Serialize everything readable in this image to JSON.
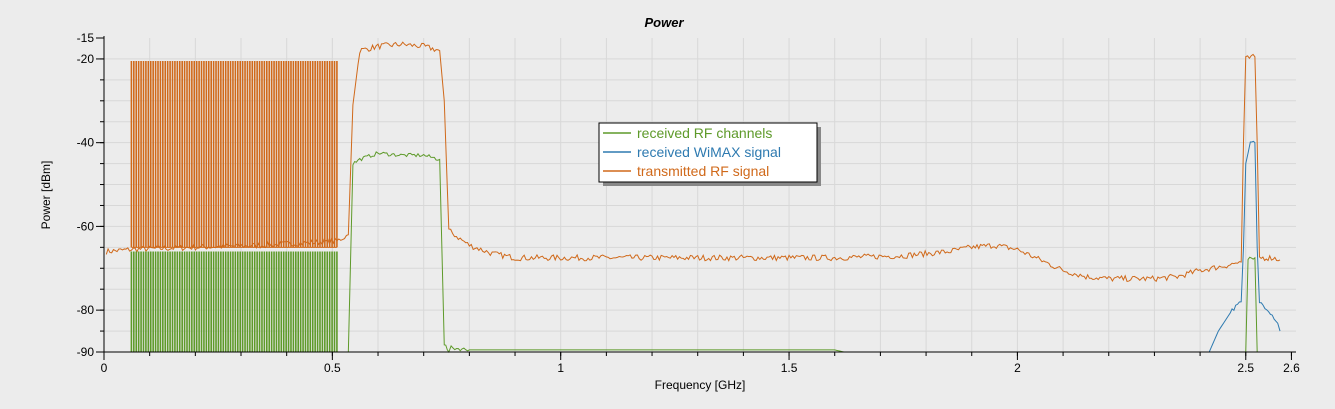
{
  "chart_data": {
    "type": "line",
    "title": "Power",
    "xlabel": "Frequency [GHz]",
    "ylabel": "Power [dBm]",
    "xlim": [
      0,
      2.6
    ],
    "ylim": [
      -90,
      -15
    ],
    "x_ticks": [
      0,
      0.5,
      1,
      1.5,
      2,
      2.5,
      2.6
    ],
    "x_tick_labels": [
      "0",
      "0.5",
      "1",
      "1.5",
      "2",
      "2.5",
      "2.6"
    ],
    "y_ticks": [
      -15,
      -20,
      -40,
      -60,
      -80,
      -90
    ],
    "y_tick_labels": [
      "-15",
      "-20",
      "-40",
      "-60",
      "-80",
      "-90"
    ],
    "grid": true,
    "legend_position": "center",
    "series": [
      {
        "name": "transmitted RF signal",
        "color": "#d0691a",
        "comb": {
          "x_start": 0.06,
          "x_end": 0.51,
          "count": 86,
          "peak": -20.5,
          "floor": -65
        },
        "points": [
          [
            0.005,
            -66
          ],
          [
            0.06,
            -65.5
          ],
          [
            0.2,
            -65
          ],
          [
            0.35,
            -64.5
          ],
          [
            0.51,
            -63.5
          ],
          [
            0.535,
            -62
          ],
          [
            0.545,
            -31
          ],
          [
            0.56,
            -18
          ],
          [
            0.6,
            -17
          ],
          [
            0.65,
            -16.5
          ],
          [
            0.7,
            -17
          ],
          [
            0.735,
            -18
          ],
          [
            0.745,
            -30
          ],
          [
            0.755,
            -61
          ],
          [
            0.78,
            -63
          ],
          [
            0.8,
            -64.5
          ],
          [
            0.85,
            -66.5
          ],
          [
            0.9,
            -67.5
          ],
          [
            1.0,
            -67.5
          ],
          [
            1.2,
            -67.5
          ],
          [
            1.4,
            -67.5
          ],
          [
            1.6,
            -67.5
          ],
          [
            1.75,
            -67
          ],
          [
            1.85,
            -66
          ],
          [
            1.9,
            -65
          ],
          [
            1.95,
            -64.5
          ],
          [
            2.0,
            -65.5
          ],
          [
            2.05,
            -68
          ],
          [
            2.1,
            -70.5
          ],
          [
            2.15,
            -72
          ],
          [
            2.2,
            -72.5
          ],
          [
            2.3,
            -72.5
          ],
          [
            2.35,
            -72
          ],
          [
            2.4,
            -70.5
          ],
          [
            2.45,
            -69.5
          ],
          [
            2.49,
            -68.5
          ],
          [
            2.495,
            -40
          ],
          [
            2.5,
            -20
          ],
          [
            2.52,
            -19.5
          ],
          [
            2.525,
            -40
          ],
          [
            2.53,
            -67.5
          ],
          [
            2.56,
            -67.5
          ],
          [
            2.575,
            -68
          ]
        ]
      },
      {
        "name": "received RF channels",
        "color": "#5e9a2a",
        "comb": {
          "x_start": 0.06,
          "x_end": 0.51,
          "count": 86,
          "peak": -66,
          "floor": -90
        },
        "points": [
          [
            0.535,
            -90
          ],
          [
            0.545,
            -45
          ],
          [
            0.56,
            -44
          ],
          [
            0.6,
            -42.5
          ],
          [
            0.65,
            -43
          ],
          [
            0.7,
            -43
          ],
          [
            0.735,
            -44
          ],
          [
            0.745,
            -88
          ],
          [
            0.755,
            -90
          ],
          [
            0.76,
            -89
          ],
          [
            0.8,
            -89.5
          ],
          [
            0.9,
            -89.5
          ],
          [
            1.0,
            -89.5
          ],
          [
            1.2,
            -89.5
          ],
          [
            1.4,
            -89.5
          ],
          [
            1.6,
            -89.5
          ],
          [
            1.62,
            -90
          ],
          [
            2.5,
            -90
          ],
          [
            2.505,
            -67.5
          ],
          [
            2.52,
            -67.5
          ],
          [
            2.525,
            -90
          ]
        ]
      },
      {
        "name": "received WiMAX signal",
        "color": "#2e7ab0",
        "points": [
          [
            2.42,
            -90
          ],
          [
            2.44,
            -85
          ],
          [
            2.47,
            -80
          ],
          [
            2.49,
            -78
          ],
          [
            2.495,
            -65
          ],
          [
            2.5,
            -45
          ],
          [
            2.51,
            -40
          ],
          [
            2.52,
            -40
          ],
          [
            2.525,
            -65
          ],
          [
            2.53,
            -78
          ],
          [
            2.55,
            -80
          ],
          [
            2.57,
            -83
          ],
          [
            2.575,
            -85
          ]
        ]
      }
    ]
  }
}
